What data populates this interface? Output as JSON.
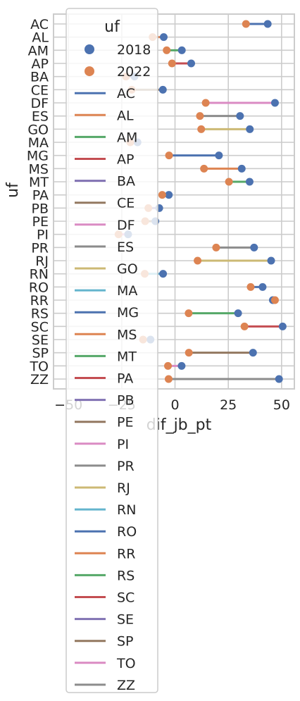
{
  "chart_data": {
    "type": "dumbbell",
    "xlabel": "dif_jb_pt",
    "ylabel": "uf",
    "xlim": [
      -57,
      56
    ],
    "xticks": [
      -50,
      -25,
      0,
      25,
      50
    ],
    "grid": true,
    "legend": {
      "title": "uf",
      "placement": "top-left"
    },
    "year_series": [
      {
        "name": "2018",
        "color": "#4c72b0"
      },
      {
        "name": "2022",
        "color": "#dd8452"
      }
    ],
    "categories": [
      "AC",
      "AL",
      "AM",
      "AP",
      "BA",
      "CE",
      "DF",
      "ES",
      "GO",
      "MA",
      "MG",
      "MS",
      "MT",
      "PA",
      "PB",
      "PE",
      "PI",
      "PR",
      "RJ",
      "RN",
      "RO",
      "RR",
      "RS",
      "SC",
      "SE",
      "SP",
      "TO",
      "ZZ"
    ],
    "values_2018": [
      43.5,
      -5.3,
      3.2,
      7.6,
      -19.0,
      -5.7,
      46.9,
      30.5,
      35.1,
      -17.6,
      20.6,
      31.3,
      35.0,
      -2.9,
      -7.4,
      -9.2,
      -22.0,
      37.1,
      45.1,
      -5.6,
      41.1,
      45.9,
      29.6,
      50.5,
      -11.5,
      36.6,
      3.1,
      48.8
    ],
    "values_2022": [
      33.3,
      -10.5,
      -3.9,
      -1.4,
      -23.0,
      -20.3,
      14.4,
      11.7,
      12.3,
      -21.0,
      -2.8,
      13.6,
      25.3,
      -6.0,
      -12.5,
      -14.0,
      -26.5,
      19.3,
      10.6,
      -14.2,
      35.5,
      46.9,
      6.4,
      32.6,
      -15.0,
      6.5,
      -3.3,
      -3.0
    ],
    "line_colors": {
      "AC": "#4c72b0",
      "AL": "#dd8452",
      "AM": "#55a868",
      "AP": "#c44e52",
      "BA": "#8172b3",
      "CE": "#937860",
      "DF": "#da8bc3",
      "ES": "#8c8c8c",
      "GO": "#ccb974",
      "MA": "#64b5cd",
      "MG": "#4c72b0",
      "MS": "#dd8452",
      "MT": "#55a868",
      "PA": "#c44e52",
      "PB": "#8172b3",
      "PE": "#937860",
      "PI": "#da8bc3",
      "PR": "#8c8c8c",
      "RJ": "#ccb974",
      "RN": "#64b5cd",
      "RO": "#4c72b0",
      "RR": "#dd8452",
      "RS": "#55a868",
      "SC": "#c44e52",
      "SE": "#8172b3",
      "SP": "#937860",
      "TO": "#da8bc3",
      "ZZ": "#8c8c8c"
    }
  }
}
